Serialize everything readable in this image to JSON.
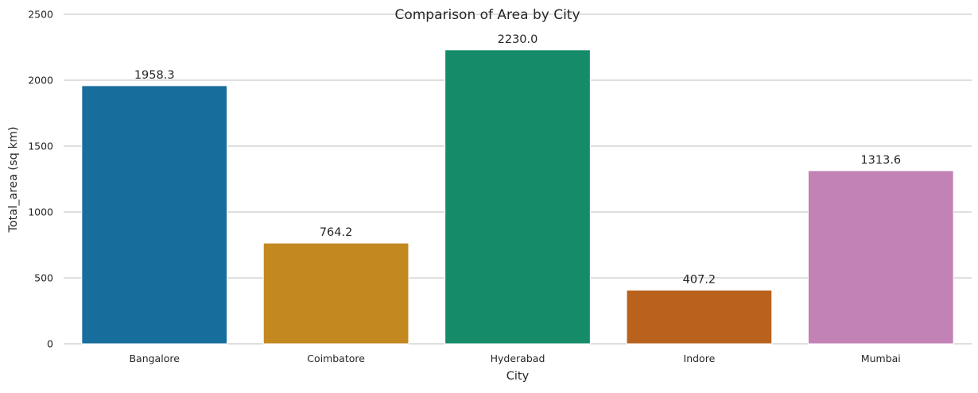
{
  "chart_data": {
    "type": "bar",
    "title": "Comparison of Area by City",
    "xlabel": "City",
    "ylabel": "Total_area (sq km)",
    "categories": [
      "Bangalore",
      "Coimbatore",
      "Hyderabad",
      "Indore",
      "Mumbai"
    ],
    "values": [
      1958.3,
      764.2,
      2230.0,
      407.2,
      1313.6
    ],
    "data_labels": [
      "1958.3",
      "764.2",
      "2230.0",
      "407.2",
      "1313.6"
    ],
    "colors": [
      "#176d9c",
      "#c38820",
      "#158b6a",
      "#b8621d",
      "#c282b5"
    ],
    "ylim": [
      0,
      2500
    ],
    "yticks": [
      0,
      500,
      1000,
      1500,
      2000,
      2500
    ],
    "ytick_labels": [
      "0",
      "500",
      "1000",
      "1500",
      "2000",
      "2500"
    ],
    "grid": "horizontal",
    "legend": "none"
  }
}
